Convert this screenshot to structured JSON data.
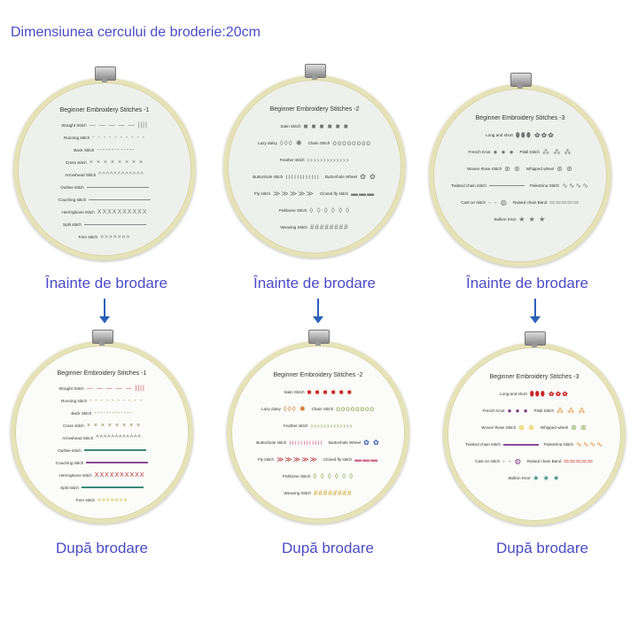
{
  "title": "Dimensiunea cercului de broderie:20cm",
  "before_label": "Înainte de brodare",
  "after_label": "După brodare",
  "hoops": [
    {
      "title": "Beginner Embroidery Stitches -1",
      "rows": [
        [
          {
            "label": "Straight Stitch",
            "kind": "straight"
          }
        ],
        [
          {
            "label": "Running stitch",
            "kind": "running"
          }
        ],
        [
          {
            "label": "Back Stitch",
            "kind": "back"
          }
        ],
        [
          {
            "label": "Cross stitch",
            "kind": "cross"
          }
        ],
        [
          {
            "label": "Arrowhead Stitch",
            "kind": "arrow"
          }
        ],
        [
          {
            "label": "Outline stitch",
            "kind": "line"
          }
        ],
        [
          {
            "label": "Couching stitch",
            "kind": "line"
          }
        ],
        [
          {
            "label": "Herringbone stitch",
            "kind": "herring"
          }
        ],
        [
          {
            "label": "Split stitch",
            "kind": "line"
          }
        ],
        [
          {
            "label": "Fern stitch",
            "kind": "fern"
          }
        ]
      ]
    },
    {
      "title": "Beginner Embroidery Stitches -2",
      "rows": [
        [
          {
            "label": "Satin Stitch",
            "kind": "satin"
          }
        ],
        [
          {
            "label": "Lazy daisy",
            "kind": "daisy"
          },
          {
            "label": "Chain Stitch",
            "kind": "chain"
          }
        ],
        [
          {
            "label": "Feather stitch",
            "kind": "feather"
          }
        ],
        [
          {
            "label": "Buttonhole stitch",
            "kind": "buttonhole"
          },
          {
            "label": "Buttonhole Wheel",
            "kind": "bwheel"
          }
        ],
        [
          {
            "label": "Fly stitch",
            "kind": "fly"
          },
          {
            "label": "Closed fly stitch",
            "kind": "closedfly"
          }
        ],
        [
          {
            "label": "Fishbone Stitch",
            "kind": "fishbone"
          }
        ],
        [
          {
            "label": "Weaving Stitch",
            "kind": "weave"
          }
        ]
      ]
    },
    {
      "title": "Beginner Embroidery Stitches -3",
      "rows": [
        [
          {
            "label": "Long and short",
            "kind": "longshort"
          }
        ],
        [
          {
            "label": "French Knot",
            "kind": "french"
          },
          {
            "label": "Pistil Stitch",
            "kind": "pistil"
          }
        ],
        [
          {
            "label": "Woven Rose Stitch",
            "kind": "rose"
          },
          {
            "label": "Whipped wheel",
            "kind": "whipped"
          }
        ],
        [
          {
            "label": "Twisted chain stitch",
            "kind": "line"
          },
          {
            "label": "Palestrina Stitch",
            "kind": "wave"
          }
        ],
        [
          {
            "label": "Cast on stitch",
            "kind": "cast"
          },
          {
            "label": "Raised chain Band",
            "kind": "raised"
          }
        ],
        [
          {
            "label": "Bullion Knot",
            "kind": "bullion"
          }
        ]
      ]
    }
  ],
  "thread_colors": {
    "after_red": "#c62828",
    "after_green": "#7ca040",
    "after_yellow": "#e9c21a",
    "after_teal": "#3a8a7a",
    "after_pink": "#d06a8a",
    "before_gray": "#777777",
    "caption_blue": "#4b4bc6",
    "arrow_blue": "#2d5fb8"
  }
}
